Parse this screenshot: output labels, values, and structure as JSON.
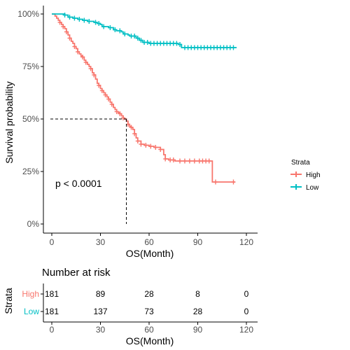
{
  "chart_data": {
    "type": "line",
    "subtype": "kaplan-meier",
    "title": "",
    "xlabel": "OS(Month)",
    "ylabel": "Survival probability",
    "xlim": [
      0,
      120
    ],
    "ylim": [
      0,
      1
    ],
    "x_ticks": [
      0,
      30,
      60,
      90,
      120
    ],
    "y_ticks": [
      0,
      0.25,
      0.5,
      0.75,
      1.0
    ],
    "y_tick_labels": [
      "0%",
      "25%",
      "50%",
      "75%",
      "100%"
    ],
    "grid": false,
    "annotation": "p < 0.0001",
    "median": {
      "series": "High",
      "x": 46,
      "y": 0.5
    },
    "legend": {
      "title": "Strata",
      "placement": "right",
      "entries": [
        "High",
        "Low"
      ]
    },
    "series": [
      {
        "name": "High",
        "color": "#F8766D",
        "steps": [
          [
            0,
            1.0
          ],
          [
            2,
            0.99
          ],
          [
            3,
            0.98
          ],
          [
            4,
            0.97
          ],
          [
            5,
            0.96
          ],
          [
            6,
            0.95
          ],
          [
            7,
            0.94
          ],
          [
            8,
            0.93
          ],
          [
            9,
            0.915
          ],
          [
            10,
            0.9
          ],
          [
            11,
            0.885
          ],
          [
            12,
            0.87
          ],
          [
            13,
            0.86
          ],
          [
            14,
            0.845
          ],
          [
            15,
            0.835
          ],
          [
            16,
            0.82
          ],
          [
            17,
            0.81
          ],
          [
            18,
            0.8
          ],
          [
            19,
            0.795
          ],
          [
            20,
            0.78
          ],
          [
            21,
            0.77
          ],
          [
            22,
            0.76
          ],
          [
            23,
            0.75
          ],
          [
            24,
            0.74
          ],
          [
            25,
            0.72
          ],
          [
            26,
            0.71
          ],
          [
            27,
            0.69
          ],
          [
            28,
            0.67
          ],
          [
            29,
            0.66
          ],
          [
            30,
            0.645
          ],
          [
            31,
            0.635
          ],
          [
            32,
            0.625
          ],
          [
            33,
            0.615
          ],
          [
            34,
            0.605
          ],
          [
            35,
            0.595
          ],
          [
            36,
            0.58
          ],
          [
            37,
            0.57
          ],
          [
            38,
            0.555
          ],
          [
            39,
            0.545
          ],
          [
            40,
            0.535
          ],
          [
            41,
            0.53
          ],
          [
            42,
            0.525
          ],
          [
            43,
            0.515
          ],
          [
            44,
            0.505
          ],
          [
            45,
            0.5
          ],
          [
            46,
            0.49
          ],
          [
            47,
            0.475
          ],
          [
            48,
            0.465
          ],
          [
            49,
            0.46
          ],
          [
            50,
            0.45
          ],
          [
            51,
            0.43
          ],
          [
            52,
            0.41
          ],
          [
            53,
            0.395
          ],
          [
            55,
            0.38
          ],
          [
            57,
            0.375
          ],
          [
            60,
            0.37
          ],
          [
            63,
            0.365
          ],
          [
            67,
            0.355
          ],
          [
            69,
            0.33
          ],
          [
            70,
            0.31
          ],
          [
            72,
            0.305
          ],
          [
            76,
            0.3
          ],
          [
            99,
            0.2
          ],
          [
            107,
            0.2
          ]
        ],
        "end_x": 113,
        "censor_x": [
          5,
          7,
          9,
          11,
          14,
          16,
          19,
          21,
          24,
          26,
          29,
          31,
          33,
          35,
          37,
          40,
          42,
          44,
          47,
          49,
          51,
          53,
          55,
          58,
          61,
          64,
          67,
          70,
          73,
          75,
          79,
          82,
          85,
          88,
          91,
          93,
          95,
          97,
          101,
          112
        ]
      },
      {
        "name": "Low",
        "color": "#00BFC4",
        "steps": [
          [
            0,
            1.0
          ],
          [
            8,
            0.995
          ],
          [
            10,
            0.985
          ],
          [
            13,
            0.98
          ],
          [
            16,
            0.975
          ],
          [
            19,
            0.97
          ],
          [
            22,
            0.965
          ],
          [
            26,
            0.96
          ],
          [
            28,
            0.955
          ],
          [
            30,
            0.95
          ],
          [
            31,
            0.94
          ],
          [
            35,
            0.935
          ],
          [
            38,
            0.925
          ],
          [
            40,
            0.92
          ],
          [
            43,
            0.915
          ],
          [
            44,
            0.905
          ],
          [
            47,
            0.9
          ],
          [
            48,
            0.895
          ],
          [
            52,
            0.885
          ],
          [
            54,
            0.875
          ],
          [
            56,
            0.865
          ],
          [
            59,
            0.865
          ],
          [
            60,
            0.86
          ],
          [
            78,
            0.855
          ],
          [
            80,
            0.84
          ]
        ],
        "end_x": 114,
        "censor_x": [
          8,
          11,
          14,
          17,
          20,
          23,
          27,
          29,
          32,
          36,
          39,
          42,
          45,
          49,
          51,
          53,
          55,
          57,
          59,
          61,
          63,
          65,
          67,
          69,
          71,
          73,
          75,
          77,
          79,
          82,
          84,
          86,
          88,
          90,
          92,
          94,
          96,
          98,
          100,
          102,
          104,
          106,
          108,
          110,
          112
        ]
      }
    ]
  },
  "risk_table": {
    "title": "Number at risk",
    "ylabel": "Strata",
    "xlabel": "OS(Month)",
    "x_ticks": [
      0,
      30,
      60,
      90,
      120
    ],
    "rows": [
      {
        "name": "High",
        "color": "#F8766D",
        "counts": [
          181,
          89,
          28,
          8,
          0
        ]
      },
      {
        "name": "Low",
        "color": "#00BFC4",
        "counts": [
          181,
          137,
          73,
          28,
          0
        ]
      }
    ]
  }
}
